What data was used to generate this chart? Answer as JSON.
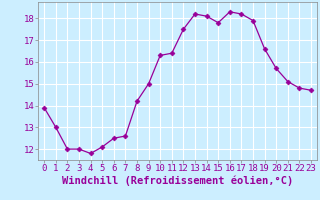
{
  "x": [
    0,
    1,
    2,
    3,
    4,
    5,
    6,
    7,
    8,
    9,
    10,
    11,
    12,
    13,
    14,
    15,
    16,
    17,
    18,
    19,
    20,
    21,
    22,
    23
  ],
  "y": [
    13.9,
    13.0,
    12.0,
    12.0,
    11.8,
    12.1,
    12.5,
    12.6,
    14.2,
    15.0,
    16.3,
    16.4,
    17.5,
    18.2,
    18.1,
    17.8,
    18.3,
    18.2,
    17.9,
    16.6,
    15.7,
    15.1,
    14.8,
    14.7
  ],
  "line_color": "#990099",
  "marker": "D",
  "marker_size": 2.5,
  "bg_color": "#cceeff",
  "grid_color": "#ffffff",
  "xlabel": "Windchill (Refroidissement éolien,°C)",
  "xlabel_fontsize": 7.5,
  "yticks": [
    12,
    13,
    14,
    15,
    16,
    17,
    18
  ],
  "xticks": [
    0,
    1,
    2,
    3,
    4,
    5,
    6,
    7,
    8,
    9,
    10,
    11,
    12,
    13,
    14,
    15,
    16,
    17,
    18,
    19,
    20,
    21,
    22,
    23
  ],
  "ylim": [
    11.5,
    18.75
  ],
  "xlim": [
    -0.5,
    23.5
  ],
  "tick_fontsize": 6.5,
  "label_color": "#990099"
}
